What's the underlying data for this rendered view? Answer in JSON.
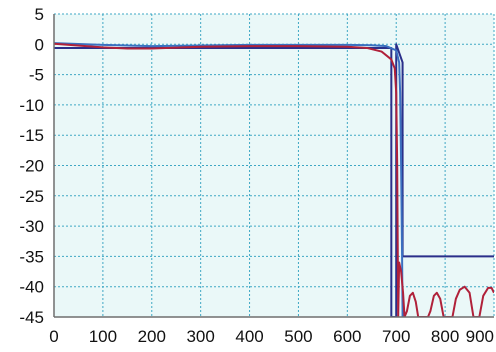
{
  "chart_data": {
    "type": "line",
    "title": "",
    "xlabel": "",
    "ylabel": "",
    "xlim": [
      0,
      900
    ],
    "ylim": [
      -45,
      5
    ],
    "x_ticks": [
      0,
      100,
      200,
      300,
      400,
      500,
      600,
      700,
      800,
      900
    ],
    "y_ticks": [
      5,
      0,
      -5,
      -10,
      -15,
      -20,
      -25,
      -30,
      -35,
      -40,
      -45
    ],
    "grid": true,
    "legend": "none",
    "colors": {
      "plot_background": "#eaf8f8",
      "grid": "#3fa7c4",
      "axis": "#6f6f6f"
    },
    "series": [
      {
        "color": "#2a2f8a",
        "points": [
          [
            0,
            -0.6
          ],
          [
            690,
            -0.6
          ],
          [
            690,
            -45
          ],
          [
            700,
            -45
          ],
          [
            700,
            0
          ],
          [
            713,
            -3
          ],
          [
            713,
            -35
          ],
          [
            900,
            -35
          ]
        ]
      },
      {
        "color": "#3b6fc0",
        "points": [
          [
            0,
            0.2
          ],
          [
            100,
            -0.1
          ],
          [
            200,
            -0.3
          ],
          [
            300,
            -0.2
          ],
          [
            400,
            -0.1
          ],
          [
            500,
            -0.1
          ],
          [
            600,
            -0.1
          ],
          [
            650,
            -0.15
          ],
          [
            680,
            -0.3
          ],
          [
            700,
            -1.0
          ],
          [
            706,
            -3.0
          ],
          [
            708,
            -8.0
          ],
          [
            710,
            -20.0
          ],
          [
            712,
            -35.0
          ],
          [
            713,
            -45.0
          ]
        ]
      },
      {
        "color": "#b0213a",
        "points": [
          [
            0,
            0.1
          ],
          [
            100,
            -0.5
          ],
          [
            150,
            -0.7
          ],
          [
            200,
            -0.7
          ],
          [
            300,
            -0.4
          ],
          [
            400,
            -0.3
          ],
          [
            500,
            -0.3
          ],
          [
            600,
            -0.4
          ],
          [
            640,
            -0.6
          ],
          [
            670,
            -1.2
          ],
          [
            690,
            -2.5
          ],
          [
            697,
            -4.0
          ],
          [
            700,
            -8.0
          ],
          [
            702,
            -20.0
          ],
          [
            704,
            -45.0
          ],
          [
            706,
            -36.0
          ],
          [
            710,
            -37.5
          ],
          [
            714,
            -41.0
          ],
          [
            717,
            -45.0
          ],
          [
            722,
            -44.0
          ],
          [
            728,
            -41.5
          ],
          [
            734,
            -41.0
          ],
          [
            740,
            -42.5
          ],
          [
            745,
            -45.0
          ],
          [
            765,
            -45.0
          ],
          [
            770,
            -44.0
          ],
          [
            777,
            -41.5
          ],
          [
            783,
            -41.0
          ],
          [
            790,
            -42.0
          ],
          [
            797,
            -45.0
          ],
          [
            815,
            -45.0
          ],
          [
            822,
            -42.0
          ],
          [
            830,
            -40.5
          ],
          [
            840,
            -40.0
          ],
          [
            850,
            -41.0
          ],
          [
            858,
            -45.0
          ],
          [
            870,
            -45.0
          ],
          [
            878,
            -41.5
          ],
          [
            888,
            -40.2
          ],
          [
            895,
            -40.2
          ],
          [
            900,
            -41.0
          ]
        ]
      }
    ]
  }
}
